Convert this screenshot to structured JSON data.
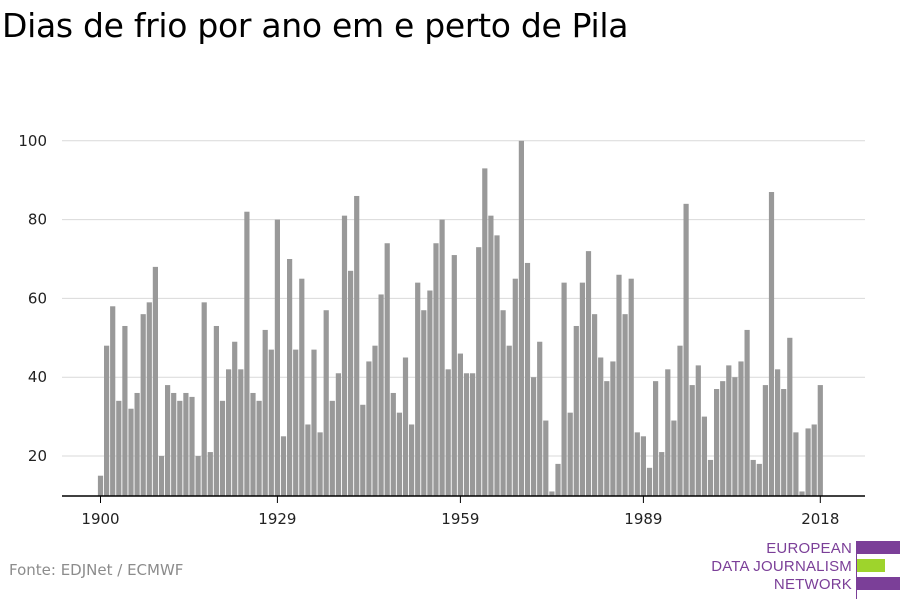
{
  "title": "Dias de frio por ano em e perto de Pila",
  "source": "Fonte: EDJNet / ECMWF",
  "logo": {
    "line1": "EUROPEAN",
    "line2": "DATA JOURNALISM",
    "line3": "NETWORK"
  },
  "colors": {
    "bar": "#999999",
    "grid": "#d9d9d9",
    "axis": "#000000",
    "logo_purple": "#7b3f98",
    "logo_green": "#9ed42c"
  },
  "chart_data": {
    "type": "bar",
    "ylim": [
      10,
      100
    ],
    "yticks": [
      20,
      40,
      60,
      80,
      100
    ],
    "xticks": [
      1900,
      1929,
      1959,
      1989,
      2018
    ],
    "grid": true,
    "x": [
      1900,
      1901,
      1902,
      1903,
      1904,
      1905,
      1906,
      1907,
      1908,
      1909,
      1910,
      1911,
      1912,
      1913,
      1914,
      1915,
      1916,
      1917,
      1918,
      1919,
      1920,
      1921,
      1922,
      1923,
      1924,
      1925,
      1926,
      1927,
      1928,
      1929,
      1930,
      1931,
      1932,
      1933,
      1934,
      1935,
      1936,
      1937,
      1938,
      1939,
      1940,
      1941,
      1942,
      1943,
      1944,
      1945,
      1946,
      1947,
      1948,
      1949,
      1950,
      1951,
      1952,
      1953,
      1954,
      1955,
      1956,
      1957,
      1958,
      1959,
      1960,
      1961,
      1962,
      1963,
      1964,
      1965,
      1966,
      1967,
      1968,
      1969,
      1970,
      1971,
      1972,
      1973,
      1974,
      1975,
      1976,
      1977,
      1978,
      1979,
      1980,
      1981,
      1982,
      1983,
      1984,
      1985,
      1986,
      1987,
      1988,
      1989,
      1990,
      1991,
      1992,
      1993,
      1994,
      1995,
      1996,
      1997,
      1998,
      1999,
      2000,
      2001,
      2002,
      2003,
      2004,
      2005,
      2006,
      2007,
      2008,
      2009,
      2010,
      2011,
      2012,
      2013,
      2014,
      2015,
      2016,
      2017,
      2018
    ],
    "values": [
      15,
      48,
      58,
      34,
      53,
      32,
      36,
      56,
      59,
      68,
      20,
      38,
      36,
      34,
      36,
      35,
      20,
      59,
      21,
      53,
      34,
      42,
      49,
      42,
      82,
      36,
      34,
      52,
      47,
      80,
      25,
      70,
      47,
      65,
      28,
      47,
      26,
      57,
      34,
      41,
      81,
      67,
      86,
      33,
      44,
      48,
      61,
      74,
      36,
      31,
      45,
      28,
      64,
      57,
      62,
      74,
      80,
      42,
      71,
      46,
      41,
      41,
      73,
      93,
      81,
      76,
      57,
      48,
      65,
      100,
      69,
      40,
      49,
      29,
      11,
      18,
      64,
      31,
      53,
      64,
      72,
      56,
      45,
      39,
      44,
      66,
      56,
      65,
      26,
      25,
      17,
      39,
      21,
      42,
      29,
      48,
      84,
      38,
      43,
      30,
      19,
      37,
      39,
      43,
      40,
      44,
      52,
      19,
      18,
      38,
      87,
      42,
      37,
      50,
      26,
      11,
      27,
      28,
      38
    ]
  }
}
